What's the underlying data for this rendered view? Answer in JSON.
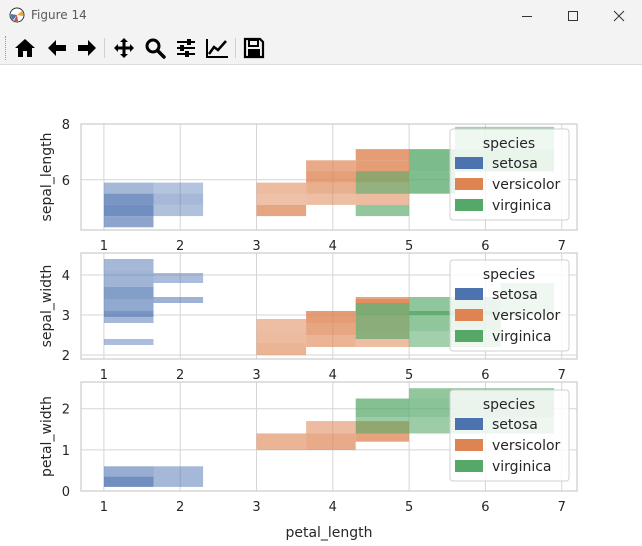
{
  "window": {
    "title": "Figure 14"
  },
  "toolbar": {
    "buttons": [
      {
        "name": "home",
        "icon": "home-icon"
      },
      {
        "name": "back",
        "icon": "arrow-left-icon"
      },
      {
        "name": "forward",
        "icon": "arrow-right-icon"
      },
      {
        "name": "pan",
        "icon": "move-icon"
      },
      {
        "name": "zoom",
        "icon": "magnifier-icon"
      },
      {
        "name": "configure-subplots",
        "icon": "sliders-icon"
      },
      {
        "name": "edit-axes",
        "icon": "chart-line-icon"
      },
      {
        "name": "save",
        "icon": "floppy-disk-icon"
      }
    ]
  },
  "figure": {
    "xlabel": "petal_length",
    "xticks": [
      1,
      2,
      3,
      4,
      5,
      6,
      7
    ],
    "colors": {
      "setosa": "#4c72b0",
      "versicolor": "#dd8452",
      "virginica": "#55a868",
      "grid": "#d5d5d5"
    },
    "legend_title": "species",
    "legend_items": [
      "setosa",
      "versicolor",
      "virginica"
    ]
  },
  "chart_data": [
    {
      "type": "heatmap",
      "subtype": "bivariate histogram",
      "x_variable": "petal_length",
      "ylabel": "sepal_length",
      "xlim": [
        0.7,
        7.2
      ],
      "ylim": [
        4.2,
        8.0
      ],
      "yticks": [
        6,
        8
      ],
      "legend_title": "species",
      "series": [
        {
          "name": "setosa",
          "bins": [
            {
              "x": [
                1.0,
                1.65
              ],
              "y": [
                4.3,
                4.7
              ],
              "density": 0.7
            },
            {
              "x": [
                1.0,
                1.65
              ],
              "y": [
                4.7,
                5.1
              ],
              "density": 1.0
            },
            {
              "x": [
                1.0,
                1.65
              ],
              "y": [
                5.1,
                5.5
              ],
              "density": 0.9
            },
            {
              "x": [
                1.0,
                1.65
              ],
              "y": [
                5.5,
                5.9
              ],
              "density": 0.45
            },
            {
              "x": [
                1.65,
                2.3
              ],
              "y": [
                4.7,
                5.1
              ],
              "density": 0.35
            },
            {
              "x": [
                1.65,
                2.3
              ],
              "y": [
                5.1,
                5.5
              ],
              "density": 0.45
            },
            {
              "x": [
                1.65,
                2.3
              ],
              "y": [
                5.5,
                5.9
              ],
              "density": 0.3
            }
          ]
        },
        {
          "name": "versicolor",
          "bins": [
            {
              "x": [
                3.0,
                3.65
              ],
              "y": [
                4.7,
                5.1
              ],
              "density": 0.85
            },
            {
              "x": [
                3.0,
                3.65
              ],
              "y": [
                5.1,
                5.5
              ],
              "density": 0.45
            },
            {
              "x": [
                3.0,
                3.65
              ],
              "y": [
                5.5,
                5.9
              ],
              "density": 0.55
            },
            {
              "x": [
                3.65,
                4.3
              ],
              "y": [
                5.1,
                5.5
              ],
              "density": 0.5
            },
            {
              "x": [
                3.65,
                4.3
              ],
              "y": [
                5.5,
                5.9
              ],
              "density": 0.7
            },
            {
              "x": [
                3.65,
                4.3
              ],
              "y": [
                5.9,
                6.3
              ],
              "density": 0.95
            },
            {
              "x": [
                3.65,
                4.3
              ],
              "y": [
                6.3,
                6.7
              ],
              "density": 0.8
            },
            {
              "x": [
                4.3,
                5.0
              ],
              "y": [
                5.1,
                5.5
              ],
              "density": 0.55
            },
            {
              "x": [
                4.3,
                5.0
              ],
              "y": [
                5.5,
                5.9
              ],
              "density": 0.5
            },
            {
              "x": [
                4.3,
                5.0
              ],
              "y": [
                5.9,
                6.3
              ],
              "density": 0.95
            },
            {
              "x": [
                4.3,
                5.0
              ],
              "y": [
                6.3,
                6.7
              ],
              "density": 1.0
            },
            {
              "x": [
                4.3,
                5.0
              ],
              "y": [
                6.7,
                7.1
              ],
              "density": 1.0
            }
          ]
        },
        {
          "name": "virginica",
          "bins": [
            {
              "x": [
                4.3,
                5.0
              ],
              "y": [
                4.7,
                5.1
              ],
              "density": 0.7
            },
            {
              "x": [
                4.3,
                5.0
              ],
              "y": [
                5.5,
                5.9
              ],
              "density": 0.6
            },
            {
              "x": [
                4.3,
                5.0
              ],
              "y": [
                5.9,
                6.3
              ],
              "density": 0.6
            },
            {
              "x": [
                5.0,
                5.6
              ],
              "y": [
                5.5,
                6.3
              ],
              "density": 0.9
            },
            {
              "x": [
                5.0,
                5.6
              ],
              "y": [
                6.3,
                7.1
              ],
              "density": 0.95
            },
            {
              "x": [
                5.6,
                6.9
              ],
              "y": [
                6.3,
                7.1
              ],
              "density": 0.85
            },
            {
              "x": [
                5.6,
                6.9
              ],
              "y": [
                7.1,
                7.9
              ],
              "density": 0.5
            }
          ]
        }
      ]
    },
    {
      "type": "heatmap",
      "subtype": "bivariate histogram",
      "x_variable": "petal_length",
      "ylabel": "sepal_width",
      "xlim": [
        0.7,
        7.2
      ],
      "ylim": [
        1.9,
        4.55
      ],
      "yticks": [
        2,
        3,
        4
      ],
      "legend_title": "species",
      "series": [
        {
          "name": "setosa",
          "bins": [
            {
              "x": [
                1.0,
                1.65
              ],
              "y": [
                2.25,
                2.4
              ],
              "density": 0.4
            },
            {
              "x": [
                1.0,
                1.65
              ],
              "y": [
                2.8,
                2.95
              ],
              "density": 0.45
            },
            {
              "x": [
                1.0,
                1.65
              ],
              "y": [
                2.95,
                3.1
              ],
              "density": 0.9
            },
            {
              "x": [
                1.0,
                1.65
              ],
              "y": [
                3.1,
                3.4
              ],
              "density": 0.65
            },
            {
              "x": [
                1.0,
                1.65
              ],
              "y": [
                3.4,
                3.7
              ],
              "density": 0.8
            },
            {
              "x": [
                1.0,
                1.65
              ],
              "y": [
                3.7,
                4.1
              ],
              "density": 0.5
            },
            {
              "x": [
                1.0,
                1.65
              ],
              "y": [
                4.1,
                4.4
              ],
              "density": 0.45
            },
            {
              "x": [
                1.65,
                2.3
              ],
              "y": [
                3.3,
                3.45
              ],
              "density": 0.55
            },
            {
              "x": [
                1.65,
                2.3
              ],
              "y": [
                3.8,
                4.05
              ],
              "density": 0.4
            }
          ]
        },
        {
          "name": "versicolor",
          "bins": [
            {
              "x": [
                3.0,
                3.65
              ],
              "y": [
                2.0,
                2.3
              ],
              "density": 0.65
            },
            {
              "x": [
                3.0,
                3.65
              ],
              "y": [
                2.3,
                2.6
              ],
              "density": 0.55
            },
            {
              "x": [
                3.0,
                3.65
              ],
              "y": [
                2.6,
                2.9
              ],
              "density": 0.5
            },
            {
              "x": [
                3.65,
                4.3
              ],
              "y": [
                2.2,
                2.5
              ],
              "density": 0.65
            },
            {
              "x": [
                3.65,
                4.3
              ],
              "y": [
                2.5,
                2.8
              ],
              "density": 0.85
            },
            {
              "x": [
                3.65,
                4.3
              ],
              "y": [
                2.8,
                3.1
              ],
              "density": 1.0
            },
            {
              "x": [
                4.3,
                5.0
              ],
              "y": [
                2.2,
                2.6
              ],
              "density": 0.5
            },
            {
              "x": [
                4.3,
                5.0
              ],
              "y": [
                2.6,
                3.0
              ],
              "density": 0.6
            },
            {
              "x": [
                4.3,
                5.0
              ],
              "y": [
                3.0,
                3.4
              ],
              "density": 0.7
            },
            {
              "x": [
                4.3,
                5.0
              ],
              "y": [
                3.3,
                3.45
              ],
              "density": 0.9
            }
          ]
        },
        {
          "name": "virginica",
          "bins": [
            {
              "x": [
                4.3,
                5.0
              ],
              "y": [
                2.4,
                3.0
              ],
              "density": 0.7
            },
            {
              "x": [
                4.3,
                5.0
              ],
              "y": [
                3.0,
                3.3
              ],
              "density": 0.85
            },
            {
              "x": [
                5.0,
                6.2
              ],
              "y": [
                2.2,
                2.6
              ],
              "density": 0.55
            },
            {
              "x": [
                5.0,
                6.2
              ],
              "y": [
                2.6,
                3.45
              ],
              "density": 0.75
            },
            {
              "x": [
                5.0,
                6.2
              ],
              "y": [
                3.0,
                3.1
              ],
              "density": 1.0
            },
            {
              "x": [
                6.2,
                6.9
              ],
              "y": [
                3.0,
                3.8
              ],
              "density": 0.5
            }
          ]
        }
      ]
    },
    {
      "type": "heatmap",
      "subtype": "bivariate histogram",
      "x_variable": "petal_length",
      "ylabel": "petal_width",
      "xlim": [
        0.7,
        7.2
      ],
      "ylim": [
        0.0,
        2.65
      ],
      "yticks": [
        0,
        1,
        2
      ],
      "legend_title": "species",
      "series": [
        {
          "name": "setosa",
          "bins": [
            {
              "x": [
                1.0,
                1.65
              ],
              "y": [
                0.1,
                0.35
              ],
              "density": 1.0
            },
            {
              "x": [
                1.0,
                1.65
              ],
              "y": [
                0.35,
                0.6
              ],
              "density": 0.6
            },
            {
              "x": [
                1.65,
                2.3
              ],
              "y": [
                0.1,
                0.6
              ],
              "density": 0.45
            }
          ]
        },
        {
          "name": "versicolor",
          "bins": [
            {
              "x": [
                3.0,
                3.65
              ],
              "y": [
                1.0,
                1.4
              ],
              "density": 0.65
            },
            {
              "x": [
                3.65,
                4.3
              ],
              "y": [
                1.0,
                1.4
              ],
              "density": 0.8
            },
            {
              "x": [
                3.65,
                4.3
              ],
              "y": [
                1.4,
                1.7
              ],
              "density": 0.55
            },
            {
              "x": [
                4.3,
                5.0
              ],
              "y": [
                1.2,
                1.7
              ],
              "density": 0.9
            }
          ]
        },
        {
          "name": "virginica",
          "bins": [
            {
              "x": [
                4.3,
                5.0
              ],
              "y": [
                1.4,
                1.8
              ],
              "density": 0.6
            },
            {
              "x": [
                4.3,
                5.0
              ],
              "y": [
                1.8,
                2.25
              ],
              "density": 0.85
            },
            {
              "x": [
                5.0,
                6.9
              ],
              "y": [
                1.4,
                1.8
              ],
              "density": 0.6
            },
            {
              "x": [
                5.0,
                6.9
              ],
              "y": [
                1.8,
                2.25
              ],
              "density": 0.8
            },
            {
              "x": [
                5.0,
                6.9
              ],
              "y": [
                2.25,
                2.5
              ],
              "density": 0.7
            }
          ]
        }
      ]
    }
  ]
}
